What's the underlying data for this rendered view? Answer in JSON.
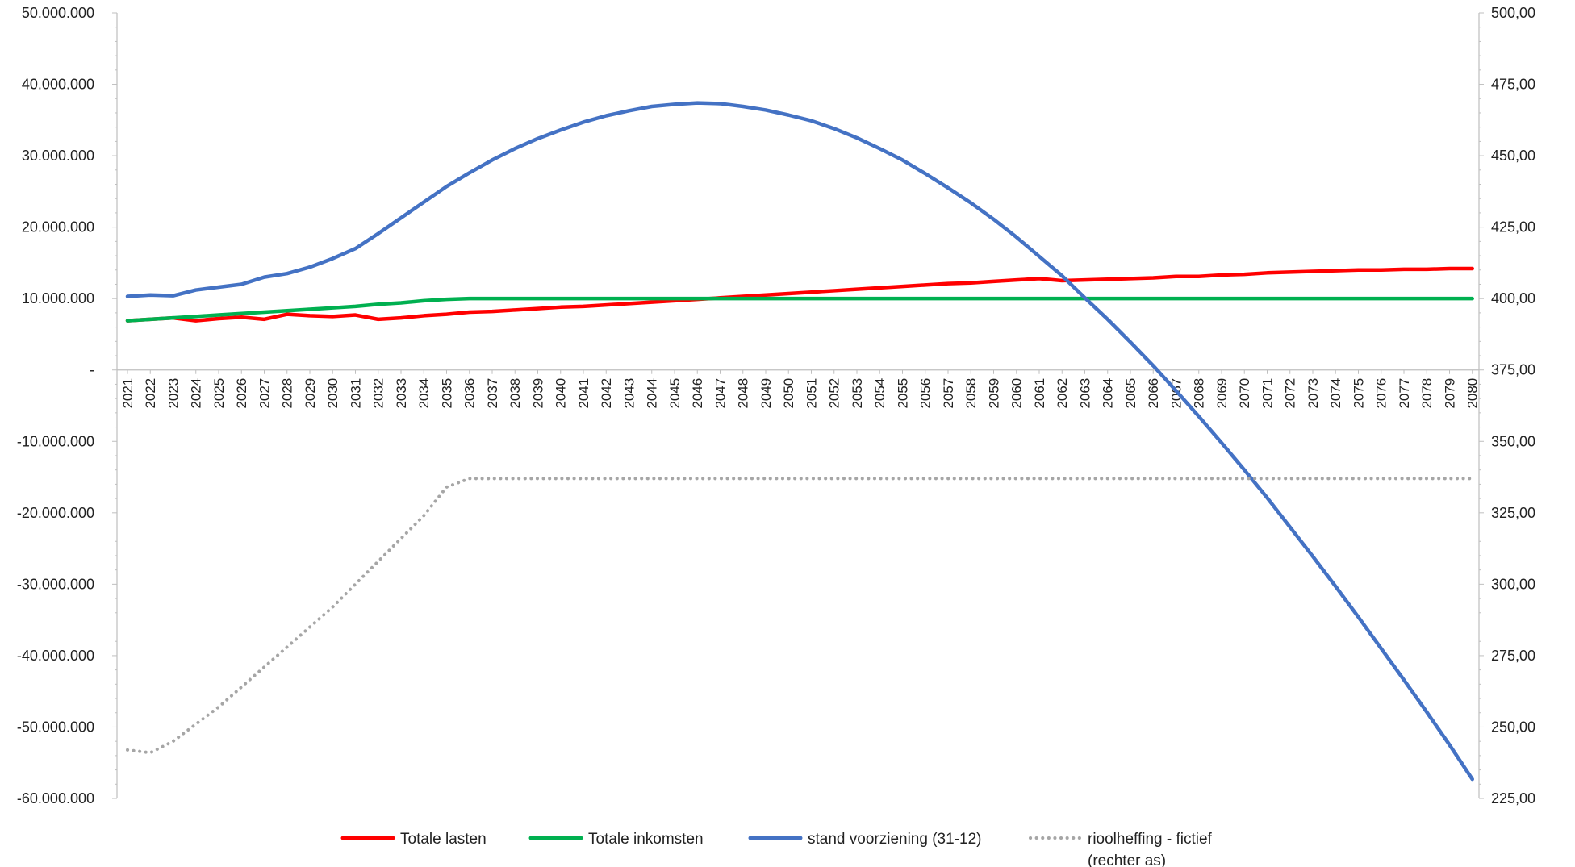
{
  "chart_data": {
    "type": "line",
    "title": "",
    "x": [
      2021,
      2022,
      2023,
      2024,
      2025,
      2026,
      2027,
      2028,
      2029,
      2030,
      2031,
      2032,
      2033,
      2034,
      2035,
      2036,
      2037,
      2038,
      2039,
      2040,
      2041,
      2042,
      2043,
      2044,
      2045,
      2046,
      2047,
      2048,
      2049,
      2050,
      2051,
      2052,
      2053,
      2054,
      2055,
      2056,
      2057,
      2058,
      2059,
      2060,
      2061,
      2062,
      2063,
      2064,
      2065,
      2066,
      2067,
      2068,
      2069,
      2070,
      2071,
      2072,
      2073,
      2074,
      2075,
      2076,
      2077,
      2078,
      2079,
      2080
    ],
    "y_left": {
      "range": [
        -60000000,
        50000000
      ],
      "ticks": [
        50000000,
        40000000,
        30000000,
        20000000,
        10000000,
        0,
        -10000000,
        -20000000,
        -30000000,
        -40000000,
        -50000000,
        -60000000
      ],
      "tick_labels": [
        "50.000.000",
        "40.000.000",
        "30.000.000",
        "20.000.000",
        "10.000.000",
        "-",
        "-10.000.000",
        "-20.000.000",
        "-30.000.000",
        "-40.000.000",
        "-50.000.000",
        "-60.000.000"
      ]
    },
    "y_right": {
      "range": [
        225,
        500
      ],
      "ticks": [
        500,
        475,
        450,
        425,
        400,
        375,
        350,
        325,
        300,
        275,
        250,
        225
      ],
      "tick_labels": [
        "500,00",
        "475,00",
        "450,00",
        "425,00",
        "400,00",
        "375,00",
        "350,00",
        "325,00",
        "300,00",
        "275,00",
        "250,00",
        "225,00"
      ]
    },
    "legend_position": "bottom",
    "series": [
      {
        "name": "Totale lasten",
        "axis": "left",
        "color": "#ff0000",
        "style": "solid",
        "values": [
          6900000,
          7100000,
          7300000,
          6900000,
          7200000,
          7400000,
          7100000,
          7800000,
          7600000,
          7500000,
          7700000,
          7100000,
          7300000,
          7600000,
          7800000,
          8100000,
          8200000,
          8400000,
          8600000,
          8800000,
          8900000,
          9100000,
          9300000,
          9500000,
          9700000,
          9900000,
          10100000,
          10300000,
          10500000,
          10700000,
          10900000,
          11100000,
          11300000,
          11500000,
          11700000,
          11900000,
          12100000,
          12200000,
          12400000,
          12600000,
          12800000,
          12500000,
          12600000,
          12700000,
          12800000,
          12900000,
          13100000,
          13100000,
          13300000,
          13400000,
          13600000,
          13700000,
          13800000,
          13900000,
          14000000,
          14000000,
          14100000,
          14100000,
          14200000,
          14200000
        ]
      },
      {
        "name": "Totale inkomsten",
        "axis": "left",
        "color": "#00b050",
        "style": "solid",
        "values": [
          6900000,
          7100000,
          7300000,
          7500000,
          7700000,
          7900000,
          8100000,
          8300000,
          8500000,
          8700000,
          8900000,
          9200000,
          9400000,
          9700000,
          9900000,
          10000000,
          10000000,
          10000000,
          10000000,
          10000000,
          10000000,
          10000000,
          10000000,
          10000000,
          10000000,
          10000000,
          10000000,
          10000000,
          10000000,
          10000000,
          10000000,
          10000000,
          10000000,
          10000000,
          10000000,
          10000000,
          10000000,
          10000000,
          10000000,
          10000000,
          10000000,
          10000000,
          10000000,
          10000000,
          10000000,
          10000000,
          10000000,
          10000000,
          10000000,
          10000000,
          10000000,
          10000000,
          10000000,
          10000000,
          10000000,
          10000000,
          10000000,
          10000000,
          10000000,
          10000000
        ]
      },
      {
        "name": "stand voorziening (31-12)",
        "axis": "left",
        "color": "#4472c4",
        "style": "solid",
        "values": [
          10300000,
          10500000,
          10400000,
          11200000,
          11600000,
          12000000,
          13000000,
          13500000,
          14400000,
          15600000,
          17000000,
          19100000,
          21300000,
          23500000,
          25700000,
          27600000,
          29400000,
          31000000,
          32400000,
          33600000,
          34700000,
          35600000,
          36300000,
          36900000,
          37200000,
          37400000,
          37300000,
          36900000,
          36400000,
          35700000,
          34900000,
          33800000,
          32500000,
          31000000,
          29400000,
          27500000,
          25500000,
          23400000,
          21100000,
          18600000,
          15900000,
          13200000,
          10100000,
          7100000,
          3900000,
          600000,
          -2900000,
          -6500000,
          -10200000,
          -14000000,
          -17900000,
          -22000000,
          -26100000,
          -30300000,
          -34600000,
          -39000000,
          -43400000,
          -47900000,
          -52500000,
          -57300000
        ]
      },
      {
        "name": "rioolheffing - fictief (rechter as)",
        "name_lines": [
          "rioolheffing - fictief",
          "(rechter as)"
        ],
        "axis": "right",
        "color": "#a6a6a6",
        "style": "dotted",
        "values": [
          242,
          241,
          245,
          251,
          257,
          264,
          271,
          278,
          285,
          292,
          300,
          308,
          316,
          324,
          334,
          337,
          337,
          337,
          337,
          337,
          337,
          337,
          337,
          337,
          337,
          337,
          337,
          337,
          337,
          337,
          337,
          337,
          337,
          337,
          337,
          337,
          337,
          337,
          337,
          337,
          337,
          337,
          337,
          337,
          337,
          337,
          337,
          337,
          337,
          337,
          337,
          337,
          337,
          337,
          337,
          337,
          337,
          337,
          337,
          337
        ]
      }
    ]
  }
}
